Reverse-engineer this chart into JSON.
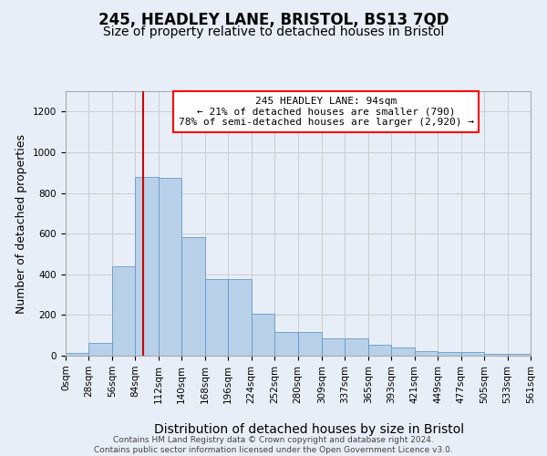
{
  "title": "245, HEADLEY LANE, BRISTOL, BS13 7QD",
  "subtitle": "Size of property relative to detached houses in Bristol",
  "xlabel": "Distribution of detached houses by size in Bristol",
  "ylabel": "Number of detached properties",
  "footer_line1": "Contains HM Land Registry data © Crown copyright and database right 2024.",
  "footer_line2": "Contains public sector information licensed under the Open Government Licence v3.0.",
  "annotation_line1": "245 HEADLEY LANE: 94sqm",
  "annotation_line2": "← 21% of detached houses are smaller (790)",
  "annotation_line3": "78% of semi-detached houses are larger (2,920) →",
  "bar_color": "#b8d0e8",
  "bar_edge_color": "#6699cc",
  "vline_color": "#cc0000",
  "vline_x": 94,
  "grid_color": "#cccccc",
  "bg_color": "#e8eef8",
  "plot_bg_color": "#e8eef8",
  "bin_edges": [
    0,
    28,
    56,
    84,
    112,
    140,
    168,
    196,
    224,
    252,
    280,
    309,
    337,
    365,
    393,
    421,
    449,
    477,
    505,
    533,
    561
  ],
  "bar_heights": [
    12,
    65,
    440,
    880,
    875,
    585,
    378,
    375,
    205,
    115,
    115,
    85,
    85,
    55,
    42,
    22,
    18,
    18,
    10,
    8
  ],
  "ylim": [
    0,
    1300
  ],
  "yticks": [
    0,
    200,
    400,
    600,
    800,
    1000,
    1200
  ],
  "title_fontsize": 12,
  "subtitle_fontsize": 10,
  "axis_label_fontsize": 9,
  "tick_fontsize": 7.5,
  "annotation_fontsize": 8,
  "footer_fontsize": 6.5
}
